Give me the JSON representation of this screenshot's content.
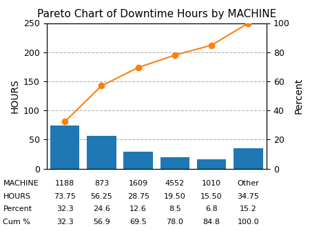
{
  "chart_data": {
    "type": "bar",
    "title": "Pareto Chart of Downtime Hours by MACHINE",
    "categories": [
      "1188",
      "873",
      "1609",
      "4552",
      "1010",
      "Other"
    ],
    "series": [
      {
        "type": "bar",
        "axis": "y",
        "values": [
          73.75,
          56.25,
          28.75,
          19.5,
          15.5,
          34.75
        ]
      },
      {
        "type": "line",
        "axis": "y2",
        "marker": "o",
        "values": [
          32.3,
          56.9,
          69.5,
          78.0,
          84.8,
          100.0
        ]
      }
    ],
    "ylabel": "HOURS",
    "y2label": "Percent",
    "ylim": [
      0,
      250
    ],
    "yticks": [
      0,
      50,
      100,
      150,
      200,
      250
    ],
    "y2lim": [
      0,
      100
    ],
    "y2ticks": [
      0,
      20,
      40,
      60,
      80,
      100
    ],
    "grid": "y",
    "tick_labels": "y",
    "table": {
      "row_labels": [
        "MACHINE",
        "HOURS",
        "Percent",
        "Cum %"
      ],
      "rows": [
        [
          "1188",
          "873",
          "1609",
          "4552",
          "1010",
          "Other"
        ],
        [
          "73.75",
          "56.25",
          "28.75",
          "19.50",
          "15.50",
          "34.75"
        ],
        [
          "32.3",
          "24.6",
          "12.6",
          "8.5",
          "6.8",
          "15.2"
        ],
        [
          "32.3",
          "56.9",
          "69.5",
          "78.0",
          "84.8",
          "100.0"
        ]
      ]
    }
  }
}
